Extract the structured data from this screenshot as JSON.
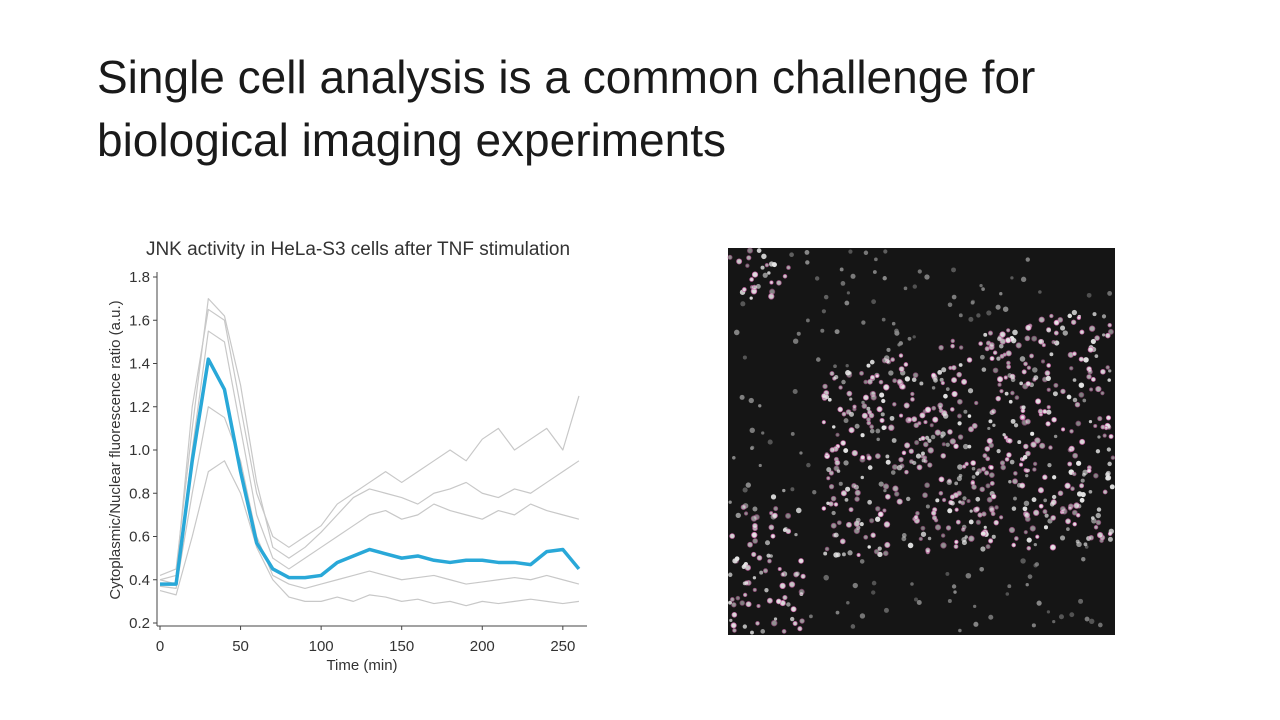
{
  "slide_title": [
    "Single cell analysis is a common challenge for",
    "biological imaging experiments"
  ],
  "chart_data": {
    "type": "line",
    "title": "JNK activity in HeLa-S3 cells after TNF stimulation",
    "x_label": "Time (min)",
    "y_label": "Cytoplasmic/Nuclear fluorescence ratio (a.u.)",
    "x": [
      0,
      10,
      20,
      30,
      40,
      50,
      60,
      70,
      80,
      90,
      100,
      110,
      120,
      130,
      140,
      150,
      160,
      170,
      180,
      190,
      200,
      210,
      220,
      230,
      240,
      250,
      260
    ],
    "xlim": [
      0,
      265
    ],
    "xticks": [
      0,
      50,
      100,
      150,
      200,
      250
    ],
    "ylim": [
      0.2,
      1.8
    ],
    "yticks": [
      0.2,
      0.4,
      0.6,
      0.8,
      {
        "value": 1.0,
        "label": "1.0"
      },
      1.2,
      1.4,
      1.6,
      1.8
    ],
    "series": [
      {
        "color": "#c8c8c8",
        "values": [
          0.4,
          0.42,
          1.2,
          1.65,
          1.6,
          1.2,
          0.8,
          0.6,
          0.55,
          0.6,
          0.65,
          0.75,
          0.8,
          0.85,
          0.9,
          0.85,
          0.9,
          0.95,
          1.0,
          0.95,
          1.05,
          1.1,
          1.0,
          1.05,
          1.1,
          1.0,
          1.25
        ]
      },
      {
        "color": "#c8c8c8",
        "values": [
          0.35,
          0.33,
          0.6,
          0.9,
          0.95,
          0.8,
          0.55,
          0.4,
          0.32,
          0.3,
          0.3,
          0.32,
          0.3,
          0.33,
          0.32,
          0.3,
          0.31,
          0.29,
          0.3,
          0.28,
          0.3,
          0.29,
          0.3,
          0.31,
          0.3,
          0.29,
          0.3
        ]
      },
      {
        "color": "#c8c8c8",
        "values": [
          0.4,
          0.38,
          1.0,
          1.55,
          1.5,
          1.1,
          0.7,
          0.5,
          0.45,
          0.5,
          0.55,
          0.6,
          0.65,
          0.7,
          0.72,
          0.68,
          0.7,
          0.75,
          0.72,
          0.7,
          0.68,
          0.72,
          0.7,
          0.75,
          0.72,
          0.7,
          0.68
        ]
      },
      {
        "color": "#c8c8c8",
        "values": [
          0.37,
          0.36,
          0.8,
          1.2,
          1.15,
          0.95,
          0.6,
          0.42,
          0.38,
          0.36,
          0.38,
          0.4,
          0.42,
          0.44,
          0.42,
          0.4,
          0.41,
          0.42,
          0.4,
          0.38,
          0.39,
          0.4,
          0.41,
          0.4,
          0.42,
          0.4,
          0.38
        ]
      },
      {
        "color": "#c8c8c8",
        "values": [
          0.42,
          0.45,
          1.1,
          1.7,
          1.62,
          1.3,
          0.85,
          0.55,
          0.5,
          0.55,
          0.62,
          0.7,
          0.78,
          0.82,
          0.8,
          0.78,
          0.75,
          0.8,
          0.82,
          0.85,
          0.8,
          0.78,
          0.82,
          0.8,
          0.85,
          0.9,
          0.95
        ]
      },
      {
        "color": "#29a8d8",
        "values": [
          0.38,
          0.38,
          0.95,
          1.42,
          1.28,
          0.9,
          0.57,
          0.45,
          0.41,
          0.41,
          0.42,
          0.48,
          0.51,
          0.54,
          0.52,
          0.5,
          0.51,
          0.49,
          0.48,
          0.49,
          0.49,
          0.48,
          0.48,
          0.47,
          0.53,
          0.54,
          0.45
        ]
      }
    ]
  }
}
